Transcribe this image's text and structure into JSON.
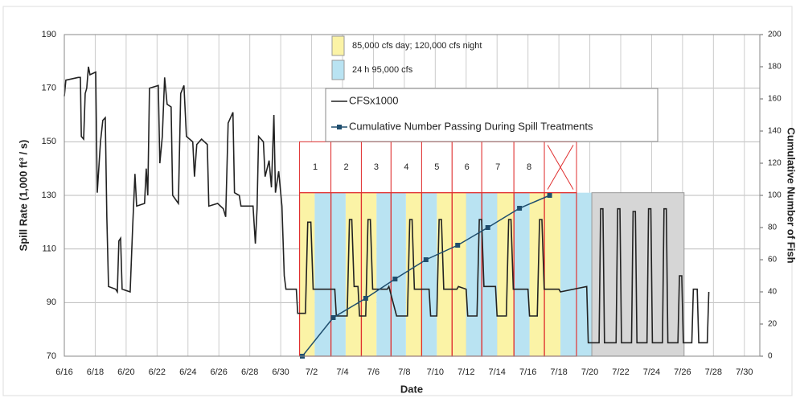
{
  "chart_data": {
    "type": "line",
    "xlabel": "Date",
    "ylabel": "Spill Rate (1,000 ft³ / s)",
    "y2label": "Cumulative Number of Fish",
    "xlim": [
      0,
      45
    ],
    "xticks": [
      {
        "value": 0,
        "label": "6/16"
      },
      {
        "value": 2,
        "label": "6/18"
      },
      {
        "value": 4,
        "label": "6/20"
      },
      {
        "value": 6,
        "label": "6/22"
      },
      {
        "value": 8,
        "label": "6/24"
      },
      {
        "value": 10,
        "label": "6/26"
      },
      {
        "value": 12,
        "label": "6/28"
      },
      {
        "value": 14,
        "label": "6/30"
      },
      {
        "value": 16,
        "label": "7/2"
      },
      {
        "value": 18,
        "label": "7/4"
      },
      {
        "value": 20,
        "label": "7/6"
      },
      {
        "value": 22,
        "label": "7/8"
      },
      {
        "value": 24,
        "label": "7/10"
      },
      {
        "value": 26,
        "label": "7/12"
      },
      {
        "value": 28,
        "label": "7/14"
      },
      {
        "value": 30,
        "label": "7/16"
      },
      {
        "value": 32,
        "label": "7/18"
      },
      {
        "value": 34,
        "label": "7/20"
      },
      {
        "value": 36,
        "label": "7/22"
      },
      {
        "value": 38,
        "label": "7/24"
      },
      {
        "value": 40,
        "label": "7/26"
      },
      {
        "value": 42,
        "label": "7/28"
      },
      {
        "value": 44,
        "label": "7/30"
      }
    ],
    "ylim": [
      70,
      190
    ],
    "yticks": [
      70,
      90,
      110,
      130,
      150,
      170,
      190
    ],
    "y2lim": [
      0,
      200
    ],
    "y2ticks": [
      0,
      20,
      40,
      60,
      80,
      100,
      120,
      140,
      160,
      180,
      200
    ],
    "grid": true,
    "treatments": [
      {
        "name": "85,000 cfs day; 120,000 cfs night",
        "color": "#fbf3a6",
        "bands": [
          [
            15.22,
            16.2
          ],
          [
            18.2,
            19.22
          ],
          [
            19.22,
            20.2
          ],
          [
            22.1,
            23.12
          ],
          [
            24.1,
            25.09
          ],
          [
            25.09,
            26.0
          ],
          [
            28.0,
            29.09
          ],
          [
            30.1,
            31.06
          ],
          [
            31.06,
            32.1
          ]
        ]
      },
      {
        "name": "24 h 95,000 cfs",
        "color": "#b9e3f2",
        "bands": [
          [
            16.2,
            17.25
          ],
          [
            17.25,
            18.2
          ],
          [
            20.2,
            21.14
          ],
          [
            21.14,
            22.1
          ],
          [
            23.12,
            24.1
          ],
          [
            26.0,
            27.01
          ],
          [
            27.01,
            28.0
          ],
          [
            29.09,
            30.1
          ],
          [
            32.1,
            33.14
          ],
          [
            33.14,
            34.13
          ]
        ]
      }
    ],
    "band_top": 131,
    "gray_region": {
      "start": 34.13,
      "end": 40.1,
      "top": 131,
      "color": "#d6d6d6"
    },
    "blocks": {
      "edges": [
        15.22,
        17.25,
        19.22,
        21.14,
        23.12,
        25.09,
        27.01,
        29.09,
        31.06,
        33.14
      ],
      "labels": [
        "1",
        "2",
        "3",
        "4",
        "5",
        "6",
        "7",
        "8",
        null
      ],
      "top": 150,
      "color": "#e03030"
    },
    "series": [
      {
        "name": "CFSx1000",
        "color": "#222222",
        "x": [
          0,
          0.1,
          0.9,
          1.04,
          1.1,
          1.25,
          1.35,
          1.45,
          1.56,
          1.66,
          2.03,
          2.13,
          2.34,
          2.49,
          2.65,
          2.75,
          2.86,
          3.32,
          3.43,
          3.53,
          3.64,
          3.74,
          4.26,
          4.42,
          4.57,
          4.68,
          5.19,
          5.3,
          5.4,
          5.51,
          6.08,
          6.18,
          6.34,
          6.49,
          6.65,
          6.91,
          7.01,
          7.38,
          7.53,
          7.74,
          7.9,
          8.31,
          8.42,
          8.57,
          8.88,
          9.25,
          9.35,
          9.92,
          10.29,
          10.44,
          10.6,
          10.91,
          11.01,
          11.32,
          11.43,
          12.21,
          12.36,
          12.47,
          12.57,
          12.88,
          12.99,
          13.25,
          13.4,
          13.56,
          13.66,
          13.87,
          14.08,
          14.23,
          14.34,
          15.01,
          15.1,
          15.6,
          15.75,
          15.95,
          16.1,
          17.5,
          17.6,
          18.3,
          18.45,
          18.6,
          18.75,
          19.0,
          19.1,
          19.5,
          19.65,
          19.8,
          19.95,
          20.9,
          21.0,
          21.5,
          22.2,
          22.35,
          22.5,
          22.65,
          23.6,
          23.7,
          24.1,
          24.25,
          24.4,
          24.55,
          25.4,
          25.5,
          26.0,
          26.1,
          26.7,
          26.85,
          27.0,
          27.15,
          27.9,
          28.0,
          28.6,
          28.75,
          28.9,
          29.05,
          30.0,
          30.1,
          30.6,
          30.75,
          30.9,
          31.05,
          32.0,
          32.1,
          33.8,
          33.9,
          34.6,
          34.7,
          34.85,
          34.95,
          35.7,
          35.8,
          35.95,
          36.05,
          36.7,
          36.8,
          36.95,
          37.05,
          37.7,
          37.8,
          37.95,
          38.05,
          38.7,
          38.8,
          38.95,
          39.05,
          39.7,
          39.8,
          39.95,
          40.05,
          40.6,
          40.7,
          40.95,
          41.05,
          41.6,
          41.7
        ],
        "values": [
          167,
          173,
          174,
          174,
          152,
          151,
          168,
          170,
          178,
          175,
          176,
          131,
          150,
          158,
          159,
          122,
          96,
          95,
          94,
          113,
          114,
          95,
          94,
          118,
          138,
          126,
          127,
          140,
          130,
          170,
          171,
          142,
          152,
          174,
          164,
          163,
          130,
          127,
          168,
          171,
          152,
          150,
          137,
          149,
          151,
          149,
          126,
          127,
          125,
          122,
          157,
          161,
          131,
          130,
          126,
          126,
          112,
          125,
          152,
          150,
          137,
          143,
          133,
          160,
          131,
          139,
          126,
          100,
          95,
          95,
          86,
          86,
          120,
          120,
          95,
          95,
          85,
          85,
          121,
          121,
          96,
          96,
          85,
          85,
          121,
          121,
          95,
          95,
          96,
          85,
          85,
          121,
          121,
          95,
          95,
          85,
          85,
          121,
          121,
          95,
          95,
          96,
          95,
          85,
          85,
          121,
          121,
          96,
          96,
          85,
          85,
          121,
          121,
          95,
          95,
          85,
          85,
          121,
          121,
          95,
          95,
          94,
          96,
          75,
          75,
          125,
          125,
          75,
          75,
          125,
          125,
          75,
          75,
          124,
          124,
          75,
          75,
          125,
          125,
          75,
          75,
          125,
          125,
          75,
          75,
          100,
          100,
          75,
          75,
          95,
          95,
          75,
          75,
          94
        ]
      },
      {
        "name": "Cumulative Number Passing During Spill Treatments",
        "color": "#1f4e6e",
        "axis": "y2",
        "marker": "square",
        "x": [
          15.4,
          17.4,
          19.5,
          21.4,
          23.4,
          25.45,
          27.4,
          29.45,
          31.4
        ],
        "values": [
          0,
          24,
          36,
          48,
          60,
          69,
          80,
          92,
          100
        ]
      }
    ]
  }
}
